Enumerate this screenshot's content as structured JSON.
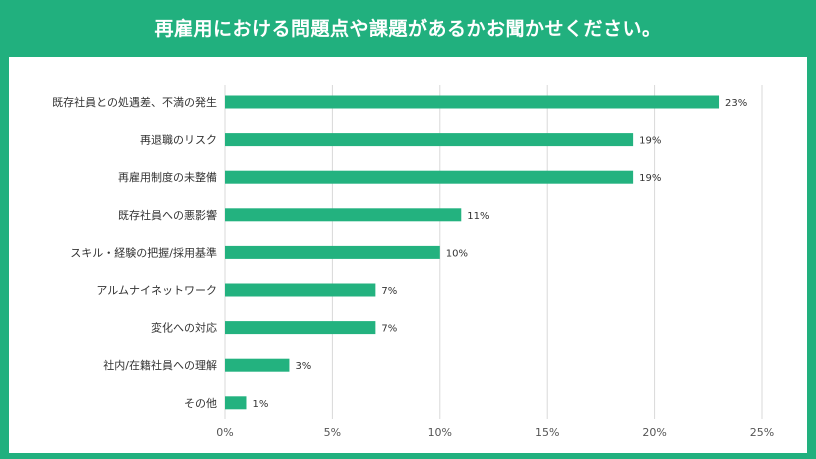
{
  "header": {
    "title": "再雇用における問題点や課題があるかお聞かせください。"
  },
  "colors": {
    "background": "#21b07e",
    "bar": "#23b27f",
    "grid": "#d9d9d9"
  },
  "chart_data": {
    "type": "bar",
    "orientation": "horizontal",
    "categories": [
      "既存社員との処遇差、不満の発生",
      "再退職のリスク",
      "再雇用制度の未整備",
      "既存社員への悪影響",
      "スキル・経験の把握/採用基準",
      "アルムナイネットワーク",
      "変化への対応",
      "社内/在籍社員への理解",
      "その他"
    ],
    "values": [
      23,
      19,
      19,
      11,
      10,
      7,
      7,
      3,
      1
    ],
    "value_labels": [
      "23%",
      "19%",
      "19%",
      "11%",
      "10%",
      "7%",
      "7%",
      "3%",
      "1%"
    ],
    "xlim": [
      0,
      25
    ],
    "x_ticks": [
      0,
      5,
      10,
      15,
      20,
      25
    ],
    "x_tick_labels": [
      "0%",
      "5%",
      "10%",
      "15%",
      "20%",
      "25%"
    ],
    "grid": true
  }
}
